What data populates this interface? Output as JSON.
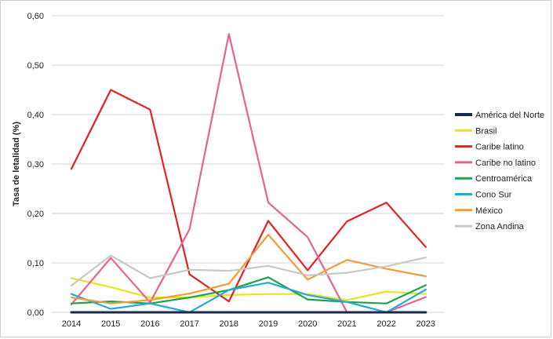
{
  "chart_data": {
    "type": "line",
    "title": "",
    "xlabel": "",
    "ylabel": "Tasa de letalidad (%)",
    "ylim": [
      0,
      0.6
    ],
    "yticks": [
      "0,00",
      "0,10",
      "0,20",
      "0,30",
      "0,40",
      "0,50",
      "0,60"
    ],
    "ytick_values": [
      0,
      0.1,
      0.2,
      0.3,
      0.4,
      0.5,
      0.6
    ],
    "grid": true,
    "legend_position": "right",
    "categories": [
      "2014",
      "2015",
      "2016",
      "2017",
      "2018",
      "2019",
      "2020",
      "2021",
      "2022",
      "2023"
    ],
    "series": [
      {
        "name": "América del Norte",
        "color": "#1b2a4a",
        "values": [
          0,
          0,
          0,
          0,
          0,
          0,
          0,
          0,
          0,
          0
        ]
      },
      {
        "name": "Brasil",
        "color": "#e8e22a",
        "values": [
          0.069,
          0.051,
          0.03,
          0.03,
          0.035,
          0.037,
          0.037,
          0.025,
          0.042,
          0.037
        ]
      },
      {
        "name": "Caribe latino",
        "color": "#e02226",
        "values": [
          0.29,
          0.45,
          0.41,
          0.077,
          0.022,
          0.185,
          0.085,
          0.184,
          0.222,
          0.132
        ]
      },
      {
        "name": "Caribe no latino",
        "color": "#e8628f",
        "values": [
          0.016,
          0.11,
          0.02,
          0.168,
          0.563,
          0.222,
          0.152,
          0.0,
          0.0,
          0.031
        ]
      },
      {
        "name": "Centroamérica",
        "color": "#1fa34a",
        "values": [
          0.018,
          0.022,
          0.018,
          0.03,
          0.045,
          0.071,
          0.026,
          0.021,
          0.018,
          0.055
        ]
      },
      {
        "name": "Cono Sur",
        "color": "#29a8d8",
        "values": [
          0.037,
          0.007,
          0.018,
          0.0,
          0.045,
          0.06,
          0.035,
          0.021,
          0.0,
          0.046
        ]
      },
      {
        "name": "México",
        "color": "#f39a3b",
        "values": [
          0.03,
          0.018,
          0.025,
          0.038,
          0.058,
          0.157,
          0.066,
          0.106,
          0.088,
          0.073
        ]
      },
      {
        "name": "Zona Andina",
        "color": "#c8c8c8",
        "values": [
          0.054,
          0.115,
          0.069,
          0.086,
          0.084,
          0.094,
          0.075,
          0.08,
          0.093,
          0.111
        ]
      }
    ]
  }
}
